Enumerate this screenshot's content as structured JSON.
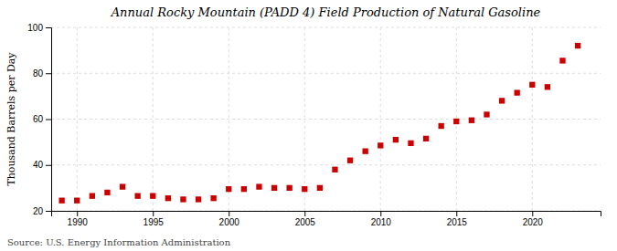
{
  "chart_data": {
    "type": "scatter",
    "title": "Annual Rocky Mountain (PADD 4) Field Production of Natural Gasoline",
    "ylabel": "Thousand Barrels per Day",
    "source": "Source: U.S. Energy Information Administration",
    "x": [
      1989,
      1990,
      1991,
      1992,
      1993,
      1994,
      1995,
      1996,
      1997,
      1998,
      1999,
      2000,
      2001,
      2002,
      2003,
      2004,
      2005,
      2006,
      2007,
      2008,
      2009,
      2010,
      2011,
      2012,
      2013,
      2014,
      2015,
      2016,
      2017,
      2018,
      2019,
      2020,
      2021,
      2022,
      2023
    ],
    "values": [
      24.5,
      24.5,
      26.5,
      28.0,
      30.5,
      26.5,
      26.5,
      25.5,
      25.0,
      25.0,
      25.5,
      29.5,
      29.5,
      30.5,
      30.0,
      30.0,
      29.5,
      30.0,
      38.0,
      42.0,
      46.0,
      48.5,
      51.0,
      49.5,
      51.5,
      57.0,
      59.0,
      59.5,
      62.0,
      68.0,
      71.5,
      75.0,
      74.0,
      85.5,
      92.0
    ],
    "color": "#cc0000",
    "marker": "square",
    "xlim": [
      1988.3,
      2024.5
    ],
    "xticks": [
      1990,
      1995,
      2000,
      2005,
      2010,
      2015,
      2020
    ],
    "ylim": [
      20,
      100
    ],
    "yticks": [
      20,
      40,
      60,
      80,
      100
    ],
    "grid": true
  }
}
